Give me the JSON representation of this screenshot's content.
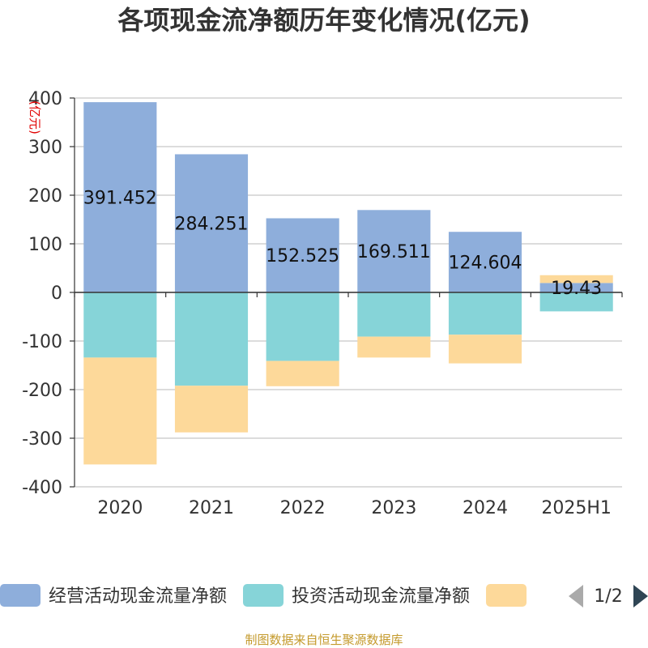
{
  "chart_data": {
    "type": "bar",
    "stacked": true,
    "title": "各项现金流净额历年变化情况(亿元)",
    "ylabel": "(亿元)",
    "categories": [
      "2020",
      "2021",
      "2022",
      "2023",
      "2024",
      "2025H1"
    ],
    "ylim": [
      -400,
      400
    ],
    "yticks": [
      400,
      300,
      200,
      100,
      0,
      -100,
      -200,
      -300,
      -400
    ],
    "grid": true,
    "series": [
      {
        "name": "经营活动现金流量净额",
        "color": "#8eaedb",
        "values": [
          391.452,
          284.251,
          152.525,
          169.511,
          124.604,
          19.43
        ]
      },
      {
        "name": "投资活动现金流量净额",
        "color": "#86d4d8",
        "values": [
          -134,
          -192,
          -141,
          -91,
          -87,
          -39
        ]
      },
      {
        "name": "",
        "color": "#fdd99a",
        "values": [
          -220,
          -96,
          -52,
          -43,
          -59,
          16
        ]
      }
    ],
    "data_labels": [
      "391.452",
      "284.251",
      "152.525",
      "169.511",
      "124.604",
      "19.43"
    ],
    "legend": {
      "position": "bottom",
      "page": "1/2"
    }
  },
  "footer": {
    "source": "制图数据来自恒生聚源数据库"
  }
}
